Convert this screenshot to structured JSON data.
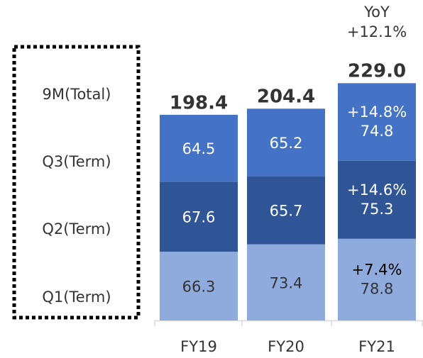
{
  "chart_data": {
    "type": "stacked_bar",
    "categories": [
      "FY19",
      "FY20",
      "FY21"
    ],
    "series": [
      {
        "name": "Q1(Term)",
        "color": "#8faadc",
        "text_color": "#333333",
        "values": [
          66.3,
          73.4,
          78.8
        ]
      },
      {
        "name": "Q2(Term)",
        "color": "#2f5597",
        "text_color": "#ffffff",
        "values": [
          67.6,
          65.7,
          75.3
        ]
      },
      {
        "name": "Q3(Term)",
        "color": "#4472c4",
        "text_color": "#ffffff",
        "values": [
          64.5,
          65.2,
          74.8
        ]
      }
    ],
    "totals": {
      "name": "9M(Total)",
      "values": [
        198.4,
        204.4,
        229.0
      ],
      "value_labels": [
        "198.4",
        "204.4",
        "229.0"
      ]
    },
    "annotations": {
      "yoy_title": "YoY",
      "total_change": "+12.1%",
      "series_change": [
        "+7.4%",
        "+14.6%",
        "+14.8%"
      ]
    }
  }
}
